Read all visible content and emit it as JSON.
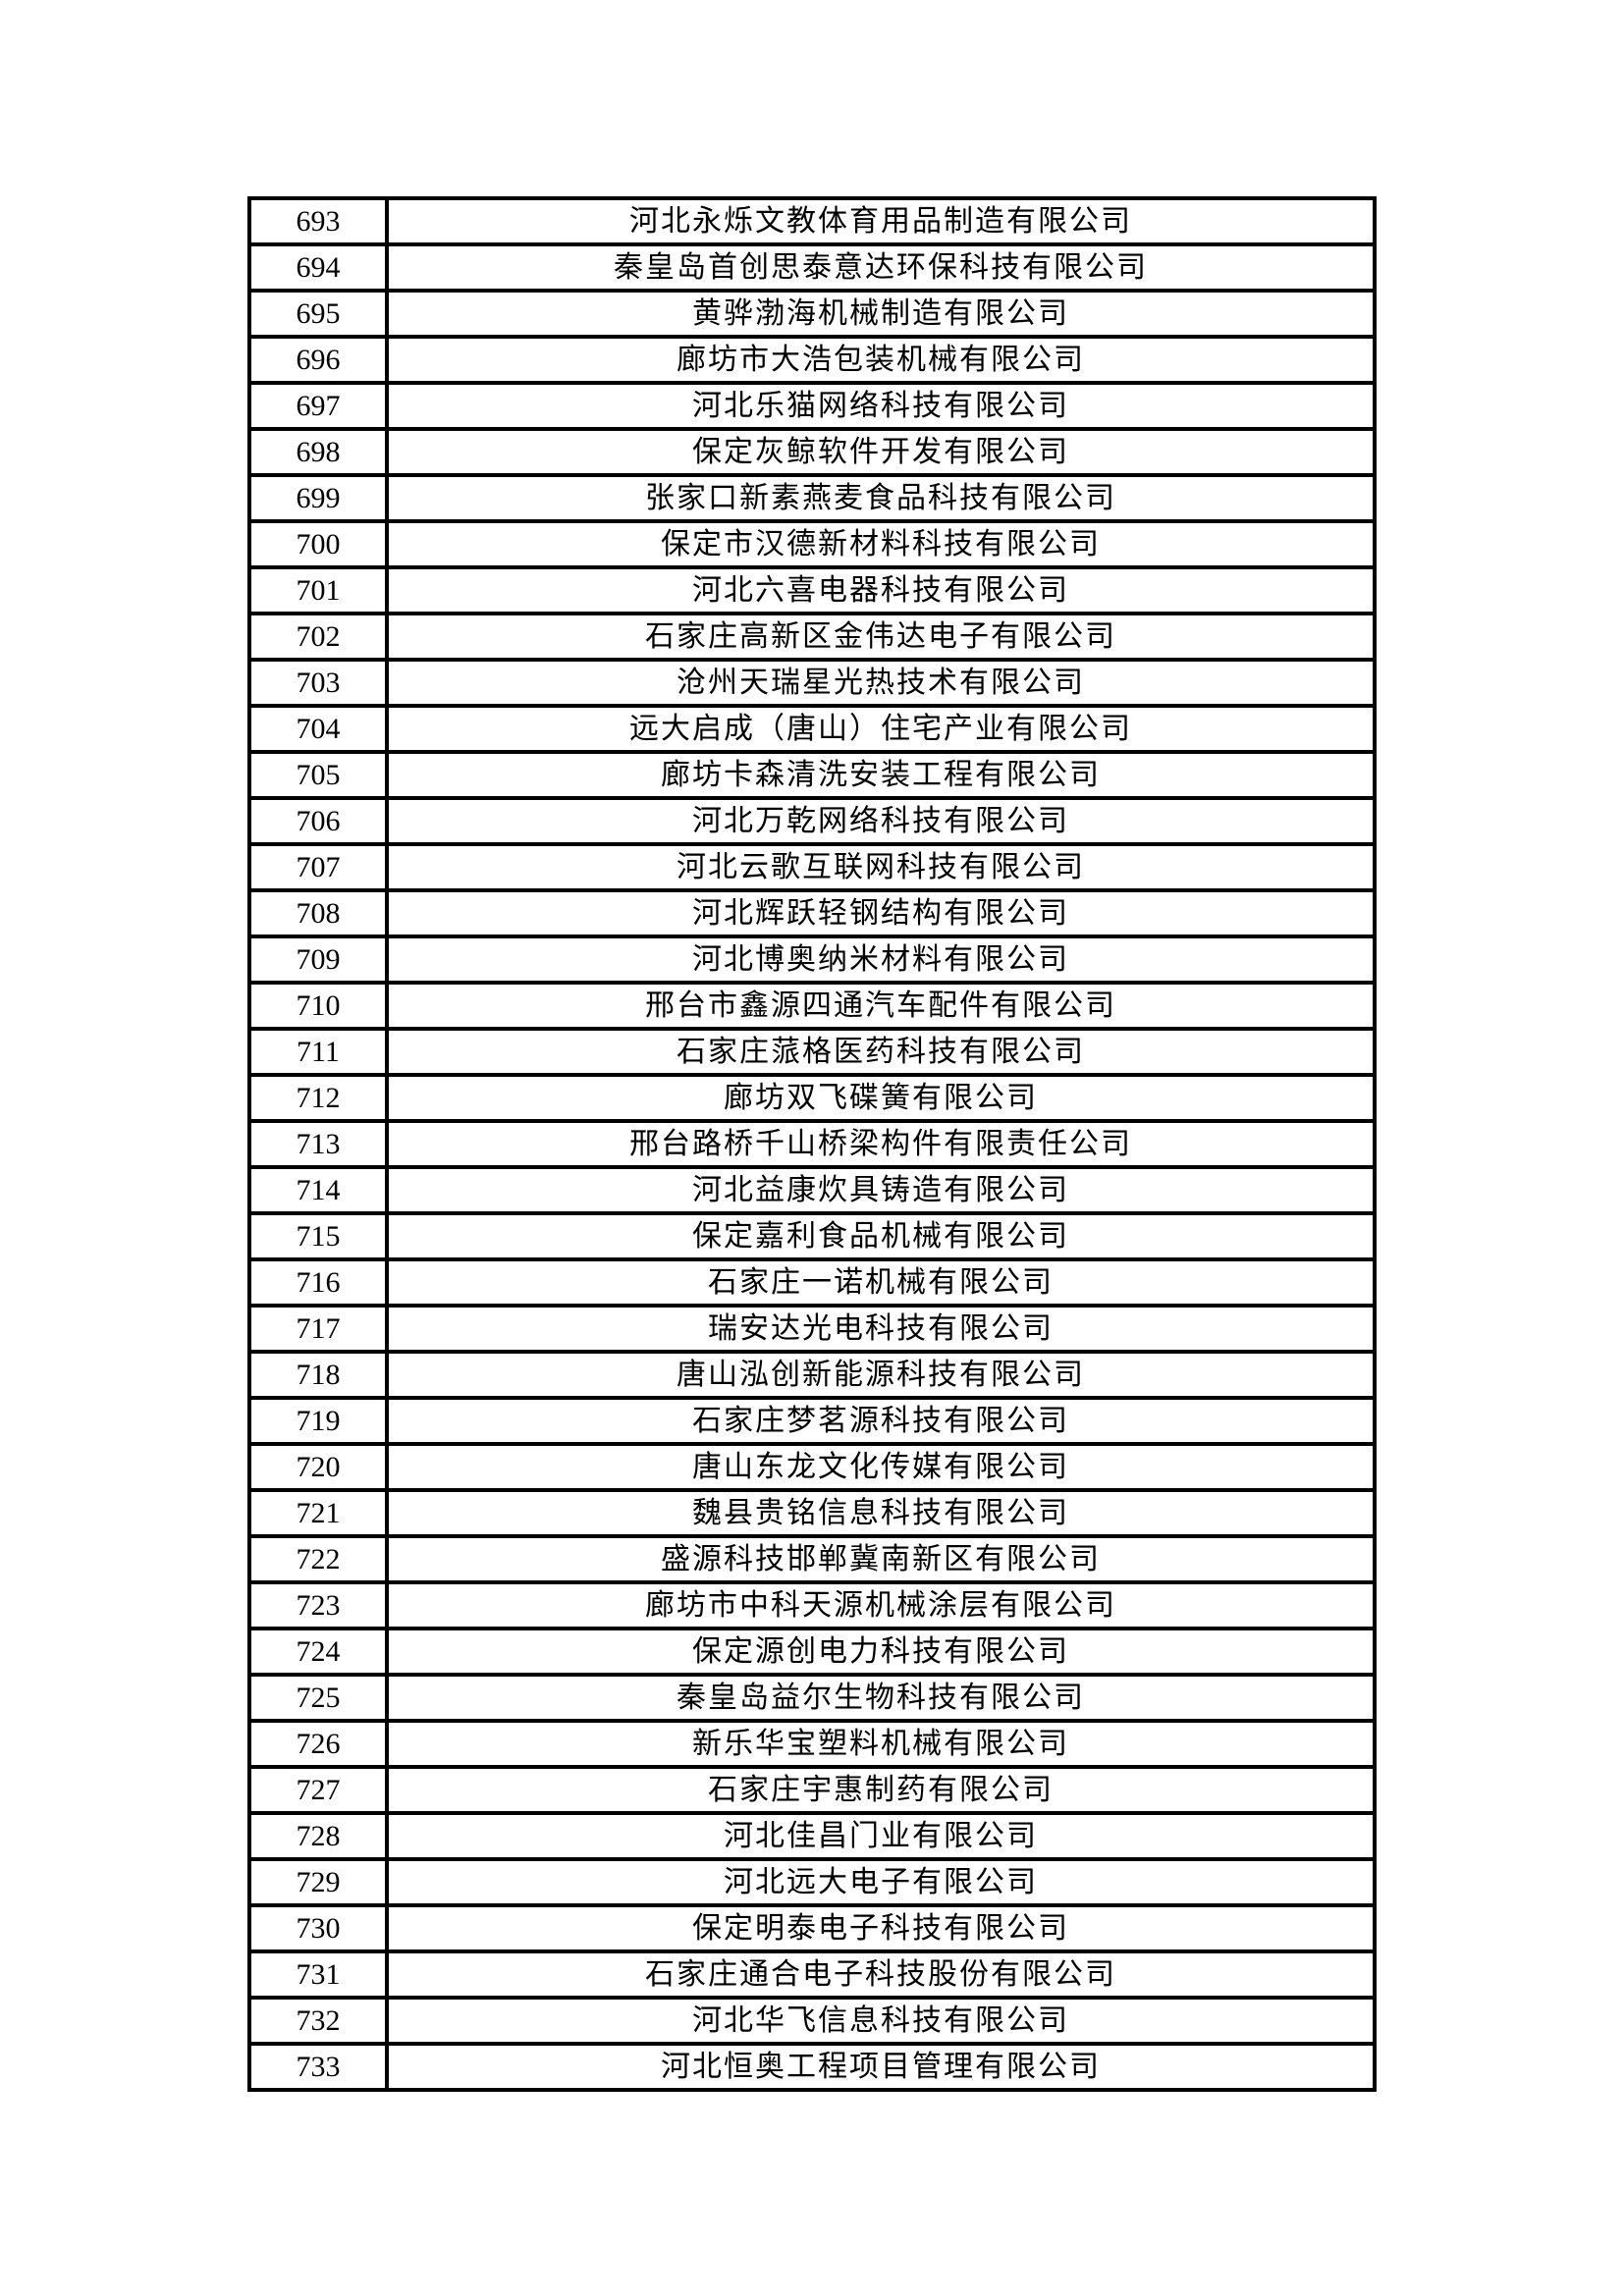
{
  "page": {
    "background_color": "#ffffff",
    "border_color": "#000000"
  },
  "table": {
    "columns": [
      "row_number",
      "company_name"
    ],
    "rows": [
      {
        "no": "693",
        "name": "河北永烁文教体育用品制造有限公司"
      },
      {
        "no": "694",
        "name": "秦皇岛首创思泰意达环保科技有限公司"
      },
      {
        "no": "695",
        "name": "黄骅渤海机械制造有限公司"
      },
      {
        "no": "696",
        "name": "廊坊市大浩包装机械有限公司"
      },
      {
        "no": "697",
        "name": "河北乐猫网络科技有限公司"
      },
      {
        "no": "698",
        "name": "保定灰鲸软件开发有限公司"
      },
      {
        "no": "699",
        "name": "张家口新素燕麦食品科技有限公司"
      },
      {
        "no": "700",
        "name": "保定市汉德新材料科技有限公司"
      },
      {
        "no": "701",
        "name": "河北六喜电器科技有限公司"
      },
      {
        "no": "702",
        "name": "石家庄高新区金伟达电子有限公司"
      },
      {
        "no": "703",
        "name": "沧州天瑞星光热技术有限公司"
      },
      {
        "no": "704",
        "name": "远大启成（唐山）住宅产业有限公司"
      },
      {
        "no": "705",
        "name": "廊坊卡森清洗安装工程有限公司"
      },
      {
        "no": "706",
        "name": "河北万乾网络科技有限公司"
      },
      {
        "no": "707",
        "name": "河北云歌互联网科技有限公司"
      },
      {
        "no": "708",
        "name": "河北辉跃轻钢结构有限公司"
      },
      {
        "no": "709",
        "name": "河北博奥纳米材料有限公司"
      },
      {
        "no": "710",
        "name": "邢台市鑫源四通汽车配件有限公司"
      },
      {
        "no": "711",
        "name": "石家庄蒎格医药科技有限公司"
      },
      {
        "no": "712",
        "name": "廊坊双飞碟簧有限公司"
      },
      {
        "no": "713",
        "name": "邢台路桥千山桥梁构件有限责任公司"
      },
      {
        "no": "714",
        "name": "河北益康炊具铸造有限公司"
      },
      {
        "no": "715",
        "name": "保定嘉利食品机械有限公司"
      },
      {
        "no": "716",
        "name": "石家庄一诺机械有限公司"
      },
      {
        "no": "717",
        "name": "瑞安达光电科技有限公司"
      },
      {
        "no": "718",
        "name": "唐山泓创新能源科技有限公司"
      },
      {
        "no": "719",
        "name": "石家庄梦茗源科技有限公司"
      },
      {
        "no": "720",
        "name": "唐山东龙文化传媒有限公司"
      },
      {
        "no": "721",
        "name": "魏县贵铭信息科技有限公司"
      },
      {
        "no": "722",
        "name": "盛源科技邯郸冀南新区有限公司"
      },
      {
        "no": "723",
        "name": "廊坊市中科天源机械涂层有限公司"
      },
      {
        "no": "724",
        "name": "保定源创电力科技有限公司"
      },
      {
        "no": "725",
        "name": "秦皇岛益尔生物科技有限公司"
      },
      {
        "no": "726",
        "name": "新乐华宝塑料机械有限公司"
      },
      {
        "no": "727",
        "name": "石家庄宇惠制药有限公司"
      },
      {
        "no": "728",
        "name": "河北佳昌门业有限公司"
      },
      {
        "no": "729",
        "name": "河北远大电子有限公司"
      },
      {
        "no": "730",
        "name": "保定明泰电子科技有限公司"
      },
      {
        "no": "731",
        "name": "石家庄通合电子科技股份有限公司"
      },
      {
        "no": "732",
        "name": "河北华飞信息科技有限公司"
      },
      {
        "no": "733",
        "name": "河北恒奥工程项目管理有限公司"
      }
    ]
  }
}
